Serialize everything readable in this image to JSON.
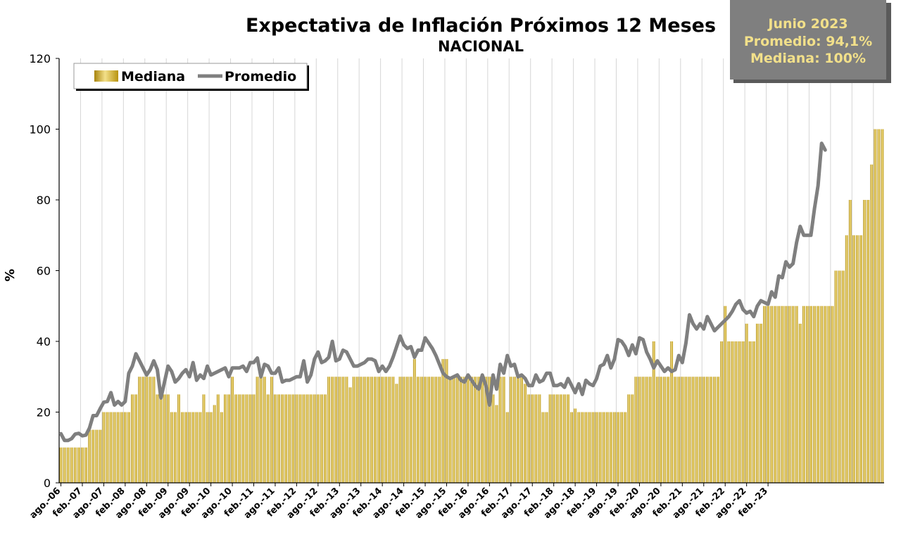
{
  "colors": {
    "bar": "#c9a418",
    "bar_light": "#f3e08a",
    "line": "#7f7f7f",
    "grid": "#d6d6d6",
    "info_box": "#7f7f7f",
    "info_text": "#f2e08a"
  },
  "info_box": {
    "line1": "Junio 2023",
    "line2": "Promedio: 94,1%",
    "line3": "Mediana: 100%"
  },
  "chart_data": {
    "type": "bar+line",
    "title": "Expectativa de Inflación Próximos 12 Meses",
    "subtitle": "NACIONAL",
    "ylabel": "%",
    "xlabel": "",
    "ylim": [
      0,
      120
    ],
    "yticks": [
      0,
      20,
      40,
      60,
      80,
      100,
      120
    ],
    "grid": "vertical",
    "legend_position": "top-left",
    "legend": [
      "Mediana",
      "Promedio"
    ],
    "x_tick_labels": [
      "ago.-06",
      "feb.-07",
      "ago.-07",
      "feb.-08",
      "ago.-08",
      "feb.-09",
      "ago.-09",
      "feb.-10",
      "ago.-10",
      "feb.-11",
      "ago.-11",
      "feb.-12",
      "ago.-12",
      "feb.-13",
      "ago.-13",
      "feb.-14",
      "ago.-14",
      "feb.-15",
      "ago.-15",
      "feb.-16",
      "ago.-16",
      "feb.-17",
      "ago.-17",
      "feb.-18",
      "ago.-18",
      "feb.-19",
      "ago.-19",
      "feb.-20",
      "ago.-20",
      "feb.-21",
      "ago.-21",
      "feb.-22",
      "ago.-22",
      "feb.-23"
    ],
    "x_tick_every_n_months": 6,
    "series": [
      {
        "name": "Mediana",
        "kind": "bar",
        "values": [
          10,
          10,
          10,
          10,
          10,
          10,
          10,
          10,
          15,
          15,
          15,
          15,
          20,
          20,
          20,
          20,
          20,
          20,
          20,
          20,
          25,
          25,
          30,
          30,
          30,
          30,
          30,
          25,
          25,
          25,
          25,
          20,
          20,
          25,
          20,
          20,
          20,
          20,
          20,
          20,
          25,
          20,
          20,
          22,
          25,
          20,
          25,
          25,
          30,
          25,
          25,
          25,
          25,
          25,
          25,
          30,
          30,
          30,
          25,
          30,
          25,
          25,
          25,
          25,
          25,
          25,
          25,
          25,
          25,
          25,
          25,
          25,
          25,
          25,
          25,
          30,
          30,
          30,
          30,
          30,
          30,
          27,
          30,
          30,
          30,
          30,
          30,
          30,
          30,
          30,
          30,
          30,
          30,
          30,
          28,
          30,
          30,
          30,
          30,
          35,
          30,
          30,
          30,
          30,
          30,
          30,
          30,
          35,
          35,
          30,
          30,
          30,
          30,
          30,
          30,
          30,
          30,
          30,
          30,
          30,
          30,
          25,
          22,
          30,
          30,
          20,
          30,
          30,
          30,
          30,
          28,
          25,
          25,
          25,
          25,
          20,
          20,
          25,
          25,
          25,
          25,
          25,
          25,
          20,
          21,
          20,
          20,
          20,
          20,
          20,
          20,
          20,
          20,
          20,
          20,
          20,
          20,
          20,
          20,
          25,
          25,
          30,
          30,
          30,
          30,
          30,
          40,
          30,
          30,
          30,
          30,
          40,
          30,
          30,
          30,
          30,
          30,
          30,
          30,
          30,
          30,
          30,
          30,
          30,
          30,
          40,
          50,
          40,
          40,
          40,
          40,
          40,
          45,
          40,
          40,
          45,
          45,
          50,
          50,
          50,
          50,
          50,
          50,
          50,
          50,
          50,
          50,
          45,
          50,
          50,
          50,
          50,
          50,
          50,
          50,
          50,
          50,
          60,
          60,
          60,
          70,
          80,
          70,
          70,
          70,
          80,
          80,
          90,
          100,
          100,
          100
        ]
      },
      {
        "name": "Promedio",
        "kind": "line",
        "values": [
          13.9,
          12.0,
          12.0,
          12.5,
          13.8,
          14.0,
          13.3,
          13.5,
          15.5,
          19.0,
          19.0,
          21.0,
          22.8,
          23.0,
          25.5,
          22.0,
          23.0,
          22.0,
          23.0,
          31.0,
          33.0,
          36.5,
          34.5,
          32.5,
          30.5,
          32.0,
          34.5,
          32.0,
          24.0,
          28.5,
          33.0,
          31.5,
          28.5,
          29.5,
          31.0,
          32.0,
          30.0,
          34.0,
          29.0,
          30.5,
          29.5,
          33.0,
          30.5,
          31.0,
          31.5,
          32.0,
          32.5,
          30.0,
          32.5,
          32.5,
          32.5,
          33.0,
          31.5,
          34.0,
          34.0,
          35.3,
          30.0,
          33.5,
          33.0,
          31.0,
          31.0,
          32.5,
          28.5,
          29.0,
          29.0,
          29.5,
          30.0,
          30.0,
          34.5,
          28.5,
          30.5,
          35.0,
          37.0,
          34.0,
          34.5,
          35.5,
          40.0,
          34.5,
          35.0,
          37.5,
          37.0,
          35.0,
          33.0,
          33.0,
          33.5,
          34.0,
          35.0,
          35.0,
          34.5,
          31.5,
          33.0,
          31.5,
          33.0,
          35.5,
          38.5,
          41.5,
          39.0,
          38.0,
          38.5,
          35.5,
          37.5,
          37.5,
          41.0,
          39.5,
          38.0,
          36.0,
          33.5,
          31.0,
          30.0,
          29.5,
          30.0,
          30.5,
          29.0,
          28.5,
          30.5,
          29.0,
          27.5,
          26.5,
          30.5,
          27.5,
          22.0,
          30.5,
          26.5,
          33.5,
          31.0,
          36.0,
          33.0,
          33.5,
          30.0,
          30.5,
          29.5,
          27.5,
          27.5,
          30.5,
          28.5,
          29.0,
          31.0,
          31.0,
          27.5,
          27.5,
          28.0,
          27.0,
          29.5,
          27.5,
          25.5,
          28.0,
          25.0,
          29.0,
          28.0,
          27.5,
          29.5,
          33.0,
          33.5,
          36.0,
          32.5,
          35.0,
          40.5,
          40.0,
          38.5,
          36.0,
          39.0,
          36.5,
          41.0,
          40.5,
          37.0,
          35.0,
          32.5,
          34.5,
          33.0,
          31.5,
          32.5,
          31.5,
          32.0,
          36.0,
          34.0,
          39.5,
          47.5,
          45.0,
          43.5,
          45.0,
          43.5,
          47.0,
          45.0,
          43.0,
          44.0,
          45.0,
          46.0,
          47.0,
          48.5,
          50.5,
          51.5,
          49.0,
          48.0,
          48.5,
          47.0,
          50.0,
          51.5,
          51.0,
          50.5,
          54.0,
          52.5,
          58.5,
          58.0,
          62.5,
          61.0,
          62.0,
          68.0,
          72.5,
          70.0,
          70.0,
          70.0,
          77.5,
          84.0,
          96.0,
          94.1
        ]
      }
    ]
  }
}
